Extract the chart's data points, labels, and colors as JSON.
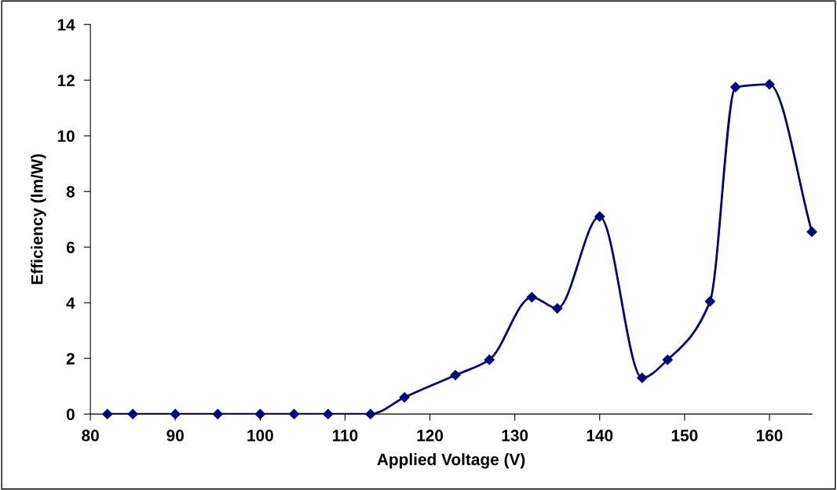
{
  "chart_data": {
    "type": "line",
    "xlabel": "Applied Voltage (V)",
    "ylabel": "Efficiency (lm/W)",
    "x": [
      82,
      85,
      90,
      95,
      100,
      104,
      108,
      113,
      117,
      123,
      127,
      132,
      135,
      140,
      145,
      148,
      153,
      156,
      160,
      165
    ],
    "series": [
      {
        "color": "#000080",
        "values": [
          0,
          0,
          0,
          0,
          0,
          0,
          0,
          0,
          0.6,
          1.4,
          1.95,
          4.2,
          3.8,
          7.1,
          1.3,
          1.95,
          4.05,
          11.75,
          11.85,
          6.55
        ]
      }
    ],
    "xlim": [
      80,
      165
    ],
    "xticks": [
      80,
      90,
      100,
      110,
      120,
      130,
      140,
      150,
      160
    ],
    "ylim": [
      0,
      14
    ],
    "yticks": [
      0,
      2,
      4,
      6,
      8,
      10,
      12,
      14
    ],
    "marker": "diamond",
    "line_style": "solid",
    "grid": false,
    "legend": false
  }
}
